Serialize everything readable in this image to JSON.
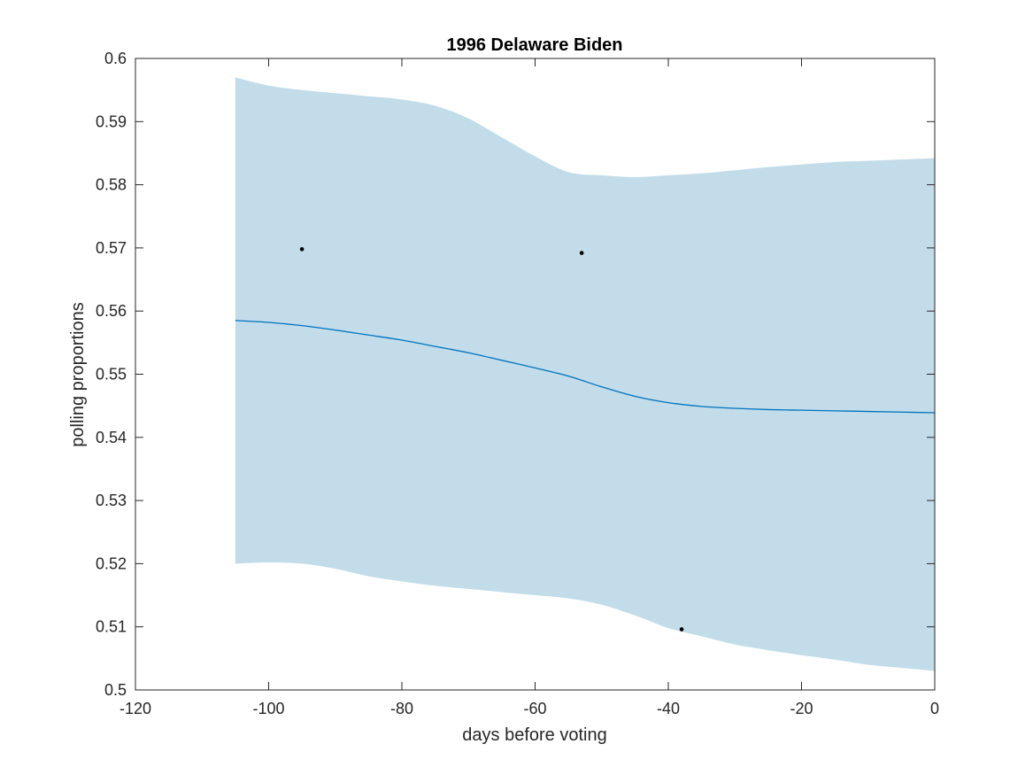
{
  "chart_data": {
    "type": "line",
    "title": "1996 Delaware Biden",
    "xlabel": "days before voting",
    "ylabel": "polling proportions",
    "xlim": [
      -120,
      0
    ],
    "ylim": [
      0.5,
      0.6
    ],
    "xticks": [
      -120,
      -100,
      -80,
      -60,
      -40,
      -20,
      0
    ],
    "yticks": [
      0.5,
      0.51,
      0.52,
      0.53,
      0.54,
      0.55,
      0.56,
      0.57,
      0.58,
      0.59,
      0.6
    ],
    "xtick_labels": [
      "-120",
      "-100",
      "-80",
      "-60",
      "-40",
      "-20",
      "0"
    ],
    "ytick_labels": [
      "0.5",
      "0.51",
      "0.52",
      "0.53",
      "0.54",
      "0.55",
      "0.56",
      "0.57",
      "0.58",
      "0.59",
      "0.6"
    ],
    "grid": false,
    "colors": {
      "band": "#c2dcea",
      "line": "#0072bd",
      "points": "#000000",
      "axis": "#262626"
    },
    "band": {
      "x": [
        -105,
        -100,
        -95,
        -90,
        -85,
        -80,
        -75,
        -70,
        -65,
        -60,
        -55,
        -50,
        -45,
        -40,
        -35,
        -30,
        -25,
        -20,
        -15,
        -10,
        -5,
        0
      ],
      "upper": [
        0.597,
        0.5957,
        0.595,
        0.5945,
        0.594,
        0.5935,
        0.5925,
        0.5905,
        0.5875,
        0.5845,
        0.582,
        0.5815,
        0.5812,
        0.5815,
        0.5818,
        0.5823,
        0.5828,
        0.5832,
        0.5836,
        0.5838,
        0.584,
        0.5842
      ],
      "lower": [
        0.52,
        0.5202,
        0.52,
        0.5192,
        0.518,
        0.5172,
        0.5165,
        0.516,
        0.5155,
        0.515,
        0.5145,
        0.5135,
        0.5118,
        0.5098,
        0.5085,
        0.5072,
        0.5063,
        0.5055,
        0.5048,
        0.504,
        0.5035,
        0.503
      ]
    },
    "series": [
      {
        "x": [
          -105,
          -100,
          -95,
          -90,
          -85,
          -80,
          -75,
          -70,
          -65,
          -60,
          -55,
          -50,
          -45,
          -40,
          -35,
          -30,
          -25,
          -20,
          -15,
          -10,
          -5,
          0
        ],
        "y": [
          0.5585,
          0.5582,
          0.5577,
          0.557,
          0.5562,
          0.5554,
          0.5544,
          0.5534,
          0.5522,
          0.551,
          0.5497,
          0.548,
          0.5465,
          0.5455,
          0.5449,
          0.5446,
          0.5444,
          0.5443,
          0.5442,
          0.5441,
          0.544,
          0.5439
        ]
      }
    ],
    "points": {
      "x": [
        -95,
        -53,
        -38
      ],
      "y": [
        0.5698,
        0.5692,
        0.5096
      ]
    }
  }
}
